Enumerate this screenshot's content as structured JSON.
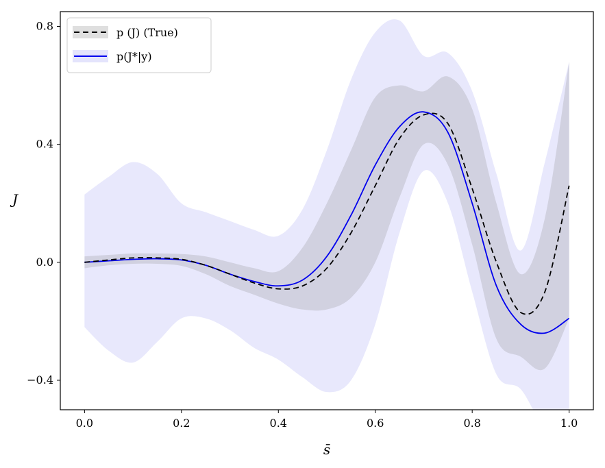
{
  "chart_data": {
    "type": "line",
    "xlabel": "s̄",
    "ylabel": "J",
    "xlim": [
      -0.05,
      1.05
    ],
    "ylim": [
      -0.5,
      0.85
    ],
    "xticks": [
      0.0,
      0.2,
      0.4,
      0.6,
      0.8,
      1.0
    ],
    "xtick_labels": [
      "0.0",
      "0.2",
      "0.4",
      "0.6",
      "0.8",
      "1.0"
    ],
    "yticks": [
      -0.4,
      0.0,
      0.4,
      0.8
    ],
    "ytick_labels": [
      "−0.4",
      "0.0",
      "0.4",
      "0.8"
    ],
    "legend_position": "top-left",
    "legend": [
      {
        "label": "p (J) (True)",
        "style": "dashed",
        "color": "#000000",
        "band_color": "#808080"
      },
      {
        "label": "p(J*|y)",
        "style": "solid",
        "color": "#0000ee",
        "band_color": "#b3b3f5"
      }
    ],
    "x": [
      0.0,
      0.05,
      0.1,
      0.15,
      0.2,
      0.25,
      0.3,
      0.35,
      0.4,
      0.45,
      0.5,
      0.55,
      0.6,
      0.65,
      0.7,
      0.75,
      0.8,
      0.85,
      0.9,
      0.95,
      1.0
    ],
    "series": [
      {
        "name": "p (J) (True)",
        "mean": [
          0.0,
          0.008,
          0.015,
          0.015,
          0.01,
          -0.01,
          -0.04,
          -0.07,
          -0.09,
          -0.08,
          -0.02,
          0.1,
          0.26,
          0.42,
          0.5,
          0.47,
          0.25,
          0.0,
          -0.17,
          -0.1,
          0.26
        ],
        "lower": [
          -0.02,
          -0.01,
          -0.005,
          -0.005,
          -0.012,
          -0.04,
          -0.08,
          -0.11,
          -0.14,
          -0.16,
          -0.16,
          -0.12,
          0.0,
          0.22,
          0.4,
          0.33,
          0.06,
          -0.26,
          -0.32,
          -0.36,
          -0.19
        ],
        "upper": [
          0.02,
          0.025,
          0.03,
          0.03,
          0.028,
          0.02,
          0.0,
          -0.02,
          -0.03,
          0.05,
          0.2,
          0.38,
          0.56,
          0.6,
          0.58,
          0.63,
          0.52,
          0.2,
          -0.04,
          0.15,
          0.68
        ]
      },
      {
        "name": "p(J*|y)",
        "mean": [
          0.0,
          0.005,
          0.01,
          0.012,
          0.008,
          -0.01,
          -0.04,
          -0.065,
          -0.08,
          -0.06,
          0.02,
          0.16,
          0.33,
          0.46,
          0.51,
          0.44,
          0.2,
          -0.08,
          -0.21,
          -0.24,
          -0.19
        ],
        "lower": [
          -0.22,
          -0.3,
          -0.34,
          -0.27,
          -0.19,
          -0.19,
          -0.23,
          -0.29,
          -0.33,
          -0.39,
          -0.44,
          -0.4,
          -0.21,
          0.1,
          0.31,
          0.2,
          -0.1,
          -0.38,
          -0.43,
          -0.56,
          -0.56
        ],
        "upper": [
          0.23,
          0.29,
          0.34,
          0.3,
          0.2,
          0.17,
          0.14,
          0.11,
          0.09,
          0.18,
          0.38,
          0.62,
          0.78,
          0.82,
          0.7,
          0.71,
          0.58,
          0.3,
          0.04,
          0.34,
          0.68
        ]
      }
    ]
  }
}
